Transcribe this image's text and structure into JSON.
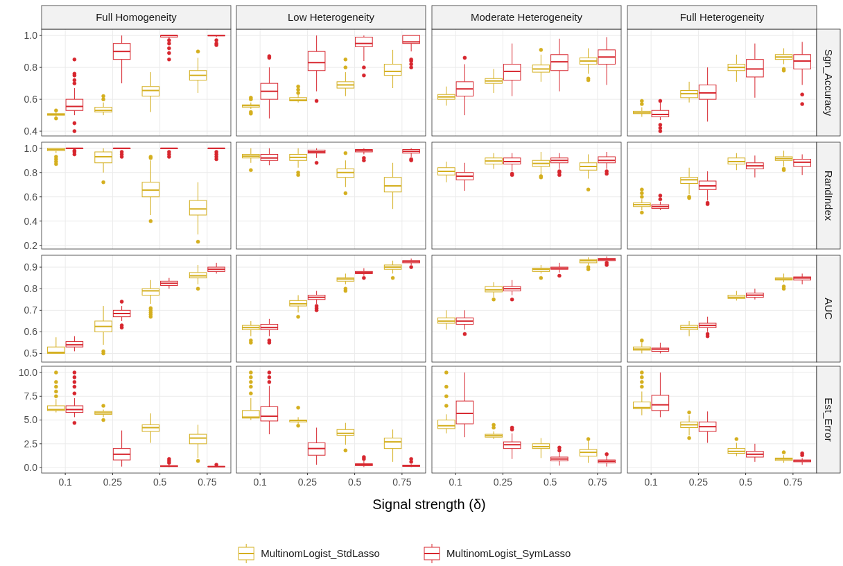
{
  "chart_data": [
    {
      "type": "box",
      "title": "Full Homogeneity",
      "categories": [
        "0.1",
        "0.25",
        "0.5",
        "0.75"
      ],
      "ylim": [
        0.37,
        1.04
      ],
      "yticks": [
        0.4,
        0.6,
        0.8,
        {
          "value": 1,
          "label": "1.0"
        }
      ],
      "grid": true,
      "tick_labels": "y",
      "legend": "bottom",
      "series": [
        {
          "name": "MultinomLogist_StdLasso",
          "color": "#d4af1f",
          "boxes": [
            {
              "low": 0.49,
              "q1": 0.5,
              "median": 0.505,
              "q3": 0.51,
              "high": 0.52,
              "outliers": [
                0.48,
                0.53
              ]
            },
            {
              "low": 0.5,
              "q1": 0.52,
              "median": 0.53,
              "q3": 0.55,
              "high": 0.58,
              "outliers": [
                0.6,
                0.62
              ]
            },
            {
              "low": 0.52,
              "q1": 0.62,
              "median": 0.655,
              "q3": 0.68,
              "high": 0.77
            },
            {
              "low": 0.64,
              "q1": 0.72,
              "median": 0.75,
              "q3": 0.78,
              "high": 0.86,
              "outliers": [
                0.9
              ]
            }
          ]
        },
        {
          "name": "MultinomLogist_SymLasso",
          "color": "#d7262e",
          "boxes": [
            {
              "low": 0.5,
              "q1": 0.53,
              "median": 0.555,
              "q3": 0.6,
              "high": 0.67,
              "outliers": [
                0.4,
                0.45,
                0.7,
                0.72,
                0.75,
                0.76,
                0.85
              ]
            },
            {
              "low": 0.7,
              "q1": 0.85,
              "median": 0.9,
              "q3": 0.95,
              "high": 1
            },
            {
              "low": 0.98,
              "q1": 0.99,
              "median": 1,
              "q3": 1,
              "high": 1,
              "outliers": [
                0.85,
                0.89,
                0.92,
                0.95,
                0.97
              ]
            },
            {
              "low": 0.99,
              "q1": 1,
              "median": 1,
              "q3": 1,
              "high": 1,
              "outliers": [
                0.94,
                0.95,
                0.97
              ]
            }
          ]
        }
      ]
    },
    {
      "type": "box",
      "title": "Low Heterogeneity",
      "categories": [
        "0.1",
        "0.25",
        "0.5",
        "0.75"
      ],
      "ylim": [
        0.37,
        1.04
      ],
      "yticks": [
        0.4,
        0.6,
        0.8,
        1
      ],
      "grid": true,
      "tick_labels": false,
      "series": [
        {
          "color": "#d4af1f",
          "boxes": [
            {
              "low": 0.54,
              "q1": 0.55,
              "median": 0.56,
              "q3": 0.565,
              "high": 0.58,
              "outliers": [
                0.51,
                0.52,
                0.6,
                0.61
              ]
            },
            {
              "low": 0.58,
              "q1": 0.59,
              "median": 0.595,
              "q3": 0.61,
              "high": 0.63,
              "outliers": [
                0.64,
                0.66,
                0.68
              ]
            },
            {
              "low": 0.62,
              "q1": 0.67,
              "median": 0.69,
              "q3": 0.71,
              "high": 0.77,
              "outliers": [
                0.8,
                0.85
              ]
            },
            {
              "low": 0.67,
              "q1": 0.75,
              "median": 0.775,
              "q3": 0.82,
              "high": 0.91
            }
          ]
        },
        {
          "color": "#d7262e",
          "boxes": [
            {
              "low": 0.48,
              "q1": 0.6,
              "median": 0.65,
              "q3": 0.7,
              "high": 0.8,
              "outliers": [
                0.86,
                0.87
              ]
            },
            {
              "low": 0.65,
              "q1": 0.78,
              "median": 0.83,
              "q3": 0.9,
              "high": 1,
              "outliers": [
                0.59
              ]
            },
            {
              "low": 0.84,
              "q1": 0.93,
              "median": 0.95,
              "q3": 0.99,
              "high": 1,
              "outliers": [
                0.75,
                0.8
              ]
            },
            {
              "low": 0.9,
              "q1": 0.95,
              "median": 0.96,
              "q3": 1,
              "high": 1,
              "outliers": [
                0.8,
                0.82,
                0.84,
                0.85
              ]
            }
          ]
        }
      ]
    },
    {
      "type": "box",
      "title": "Moderate Heterogeneity",
      "categories": [
        "0.1",
        "0.25",
        "0.5",
        "0.75"
      ],
      "ylim": [
        0.37,
        1.04
      ],
      "yticks": [
        0.4,
        0.6,
        0.8,
        1
      ],
      "grid": true,
      "tick_labels": false,
      "series": [
        {
          "color": "#d4af1f",
          "boxes": [
            {
              "low": 0.56,
              "q1": 0.6,
              "median": 0.615,
              "q3": 0.63,
              "high": 0.68
            },
            {
              "low": 0.64,
              "q1": 0.7,
              "median": 0.715,
              "q3": 0.73,
              "high": 0.79
            },
            {
              "low": 0.71,
              "q1": 0.77,
              "median": 0.79,
              "q3": 0.815,
              "high": 0.88,
              "outliers": [
                0.91
              ]
            },
            {
              "low": 0.76,
              "q1": 0.82,
              "median": 0.84,
              "q3": 0.86,
              "high": 0.92,
              "outliers": [
                0.72,
                0.73
              ]
            }
          ]
        },
        {
          "color": "#d7262e",
          "boxes": [
            {
              "low": 0.5,
              "q1": 0.62,
              "median": 0.665,
              "q3": 0.71,
              "high": 0.82,
              "outliers": [
                0.86
              ]
            },
            {
              "low": 0.62,
              "q1": 0.72,
              "median": 0.775,
              "q3": 0.82,
              "high": 0.95
            },
            {
              "low": 0.65,
              "q1": 0.78,
              "median": 0.835,
              "q3": 0.88,
              "high": 0.98
            },
            {
              "low": 0.69,
              "q1": 0.82,
              "median": 0.865,
              "q3": 0.91,
              "high": 0.99
            }
          ]
        }
      ]
    },
    {
      "type": "box",
      "title": "Full Heterogeneity",
      "ylabel": "Sgn_Accuracy",
      "categories": [
        "0.1",
        "0.25",
        "0.5",
        "0.75"
      ],
      "ylim": [
        0.37,
        1.04
      ],
      "yticks": [
        0.4,
        0.6,
        0.8,
        1
      ],
      "grid": true,
      "tick_labels": false,
      "series": [
        {
          "color": "#d4af1f",
          "boxes": [
            {
              "low": 0.49,
              "q1": 0.51,
              "median": 0.515,
              "q3": 0.525,
              "high": 0.55,
              "outliers": [
                0.57,
                0.59
              ]
            },
            {
              "low": 0.58,
              "q1": 0.61,
              "median": 0.635,
              "q3": 0.655,
              "high": 0.71
            },
            {
              "low": 0.71,
              "q1": 0.78,
              "median": 0.8,
              "q3": 0.82,
              "high": 0.88
            },
            {
              "low": 0.82,
              "q1": 0.85,
              "median": 0.865,
              "q3": 0.88,
              "high": 0.92,
              "outliers": [
                0.78,
                0.79
              ]
            }
          ]
        },
        {
          "color": "#d7262e",
          "boxes": [
            {
              "low": 0.47,
              "q1": 0.49,
              "median": 0.505,
              "q3": 0.53,
              "high": 0.58,
              "outliers": [
                0.4,
                0.42,
                0.44,
                0.59
              ]
            },
            {
              "low": 0.46,
              "q1": 0.6,
              "median": 0.64,
              "q3": 0.69,
              "high": 0.8
            },
            {
              "low": 0.61,
              "q1": 0.74,
              "median": 0.79,
              "q3": 0.85,
              "high": 0.95
            },
            {
              "low": 0.69,
              "q1": 0.79,
              "median": 0.84,
              "q3": 0.88,
              "high": 0.96,
              "outliers": [
                0.57,
                0.63
              ]
            }
          ]
        }
      ]
    },
    {
      "type": "box",
      "categories": [
        "0.1",
        "0.25",
        "0.5",
        "0.75"
      ],
      "ylim": [
        0.17,
        1.05
      ],
      "yticks": [
        0.2,
        0.4,
        0.6,
        0.8,
        {
          "value": 1,
          "label": "1.0"
        }
      ],
      "grid": true,
      "tick_labels": "y",
      "series": [
        {
          "color": "#d4af1f",
          "boxes": [
            {
              "low": 0.96,
              "q1": 0.98,
              "median": 0.99,
              "q3": 1,
              "high": 1,
              "outliers": [
                0.87,
                0.89,
                0.91,
                0.93
              ]
            },
            {
              "low": 0.8,
              "q1": 0.88,
              "median": 0.93,
              "q3": 0.97,
              "high": 1,
              "outliers": [
                0.72
              ]
            },
            {
              "low": 0.45,
              "q1": 0.6,
              "median": 0.655,
              "q3": 0.72,
              "high": 0.9,
              "outliers": [
                0.4,
                0.92,
                0.93
              ]
            },
            {
              "low": 0.29,
              "q1": 0.45,
              "median": 0.5,
              "q3": 0.57,
              "high": 0.72,
              "outliers": [
                0.23
              ]
            }
          ]
        },
        {
          "color": "#d7262e",
          "boxes": [
            {
              "low": 1,
              "q1": 1,
              "median": 1,
              "q3": 1,
              "high": 1,
              "outliers": [
                0.95,
                0.97,
                0.98
              ]
            },
            {
              "low": 1,
              "q1": 1,
              "median": 1,
              "q3": 1,
              "high": 1,
              "outliers": [
                0.93,
                0.95,
                0.97
              ]
            },
            {
              "low": 1,
              "q1": 1,
              "median": 1,
              "q3": 1,
              "high": 1,
              "outliers": [
                0.93,
                0.95,
                0.97
              ]
            },
            {
              "low": 1,
              "q1": 1,
              "median": 1,
              "q3": 1,
              "high": 1,
              "outliers": [
                0.91,
                0.93,
                0.95,
                0.97
              ]
            }
          ]
        }
      ]
    },
    {
      "type": "box",
      "categories": [
        "0.1",
        "0.25",
        "0.5",
        "0.75"
      ],
      "ylim": [
        0.17,
        1.05
      ],
      "yticks": [
        0.2,
        0.4,
        0.6,
        0.8,
        1
      ],
      "grid": true,
      "tick_labels": false,
      "series": [
        {
          "color": "#d4af1f",
          "boxes": [
            {
              "low": 0.88,
              "q1": 0.92,
              "median": 0.935,
              "q3": 0.95,
              "high": 1,
              "outliers": [
                0.82
              ]
            },
            {
              "low": 0.84,
              "q1": 0.9,
              "median": 0.925,
              "q3": 0.95,
              "high": 1,
              "outliers": [
                0.78,
                0.8
              ]
            },
            {
              "low": 0.68,
              "q1": 0.76,
              "median": 0.8,
              "q3": 0.83,
              "high": 0.9,
              "outliers": [
                0.63,
                0.96
              ]
            },
            {
              "low": 0.5,
              "q1": 0.64,
              "median": 0.69,
              "q3": 0.76,
              "high": 0.88
            }
          ]
        },
        {
          "color": "#d7262e",
          "boxes": [
            {
              "low": 0.86,
              "q1": 0.9,
              "median": 0.92,
              "q3": 0.95,
              "high": 1
            },
            {
              "low": 0.92,
              "q1": 0.96,
              "median": 0.97,
              "q3": 0.985,
              "high": 1,
              "outliers": [
                0.88
              ]
            },
            {
              "low": 0.95,
              "q1": 0.97,
              "median": 0.98,
              "q3": 0.99,
              "high": 1,
              "outliers": [
                0.9,
                0.92
              ]
            },
            {
              "low": 0.93,
              "q1": 0.96,
              "median": 0.975,
              "q3": 0.99,
              "high": 1,
              "outliers": [
                0.9,
                0.91
              ]
            }
          ]
        }
      ]
    },
    {
      "type": "box",
      "categories": [
        "0.1",
        "0.25",
        "0.5",
        "0.75"
      ],
      "ylim": [
        0.17,
        1.05
      ],
      "yticks": [
        0.2,
        0.4,
        0.6,
        0.8,
        1
      ],
      "grid": true,
      "tick_labels": false,
      "series": [
        {
          "color": "#d4af1f",
          "boxes": [
            {
              "low": 0.72,
              "q1": 0.78,
              "median": 0.81,
              "q3": 0.84,
              "high": 0.89
            },
            {
              "low": 0.83,
              "q1": 0.87,
              "median": 0.895,
              "q3": 0.92,
              "high": 0.96
            },
            {
              "low": 0.78,
              "q1": 0.85,
              "median": 0.875,
              "q3": 0.9,
              "high": 0.97,
              "outliers": [
                0.76,
                0.77
              ]
            },
            {
              "low": 0.75,
              "q1": 0.82,
              "median": 0.85,
              "q3": 0.88,
              "high": 0.95,
              "outliers": [
                0.66
              ]
            }
          ]
        },
        {
          "color": "#d7262e",
          "boxes": [
            {
              "low": 0.65,
              "q1": 0.74,
              "median": 0.77,
              "q3": 0.8,
              "high": 0.88
            },
            {
              "low": 0.81,
              "q1": 0.87,
              "median": 0.89,
              "q3": 0.92,
              "high": 0.96,
              "outliers": [
                0.78,
                0.79
              ]
            },
            {
              "low": 0.83,
              "q1": 0.88,
              "median": 0.9,
              "q3": 0.92,
              "high": 0.96,
              "outliers": [
                0.78,
                0.8,
                0.81
              ]
            },
            {
              "low": 0.83,
              "q1": 0.88,
              "median": 0.9,
              "q3": 0.93,
              "high": 0.97,
              "outliers": [
                0.79,
                0.81
              ]
            }
          ]
        }
      ]
    },
    {
      "type": "box",
      "ylabel": "RandIndex",
      "categories": [
        "0.1",
        "0.25",
        "0.5",
        "0.75"
      ],
      "ylim": [
        0.17,
        1.05
      ],
      "yticks": [
        0.2,
        0.4,
        0.6,
        0.8,
        1
      ],
      "grid": true,
      "tick_labels": false,
      "series": [
        {
          "color": "#d4af1f",
          "boxes": [
            {
              "low": 0.49,
              "q1": 0.52,
              "median": 0.535,
              "q3": 0.55,
              "high": 0.58,
              "outliers": [
                0.47,
                0.6,
                0.63,
                0.66
              ]
            },
            {
              "low": 0.62,
              "q1": 0.71,
              "median": 0.74,
              "q3": 0.76,
              "high": 0.84,
              "outliers": [
                0.59,
                0.6
              ]
            },
            {
              "low": 0.82,
              "q1": 0.87,
              "median": 0.89,
              "q3": 0.92,
              "high": 0.96
            },
            {
              "low": 0.85,
              "q1": 0.9,
              "median": 0.915,
              "q3": 0.93,
              "high": 0.98,
              "outliers": [
                0.82,
                0.83
              ]
            }
          ]
        },
        {
          "color": "#d7262e",
          "boxes": [
            {
              "low": 0.49,
              "q1": 0.505,
              "median": 0.52,
              "q3": 0.535,
              "high": 0.56,
              "outliers": [
                0.58,
                0.61
              ]
            },
            {
              "low": 0.57,
              "q1": 0.66,
              "median": 0.69,
              "q3": 0.73,
              "high": 0.81,
              "outliers": [
                0.54,
                0.55
              ]
            },
            {
              "low": 0.76,
              "q1": 0.83,
              "median": 0.855,
              "q3": 0.88,
              "high": 0.94
            },
            {
              "low": 0.78,
              "q1": 0.85,
              "median": 0.885,
              "q3": 0.91,
              "high": 0.95
            }
          ]
        }
      ]
    },
    {
      "type": "box",
      "categories": [
        "0.1",
        "0.25",
        "0.5",
        "0.75"
      ],
      "ylim": [
        0.46,
        0.955
      ],
      "yticks": [
        0.5,
        0.6,
        0.7,
        0.8,
        0.9
      ],
      "grid": true,
      "tick_labels": "y",
      "series": [
        {
          "color": "#d4af1f",
          "boxes": [
            {
              "low": 0.5,
              "q1": 0.5,
              "median": 0.505,
              "q3": 0.53,
              "high": 0.575
            },
            {
              "low": 0.54,
              "q1": 0.6,
              "median": 0.625,
              "q3": 0.65,
              "high": 0.72,
              "outliers": [
                0.5,
                0.51
              ]
            },
            {
              "low": 0.73,
              "q1": 0.77,
              "median": 0.79,
              "q3": 0.8,
              "high": 0.84,
              "outliers": [
                0.67,
                0.68,
                0.69,
                0.7,
                0.71
              ]
            },
            {
              "low": 0.82,
              "q1": 0.85,
              "median": 0.86,
              "q3": 0.875,
              "high": 0.91,
              "outliers": [
                0.8
              ]
            }
          ]
        },
        {
          "color": "#d7262e",
          "boxes": [
            {
              "low": 0.51,
              "q1": 0.53,
              "median": 0.54,
              "q3": 0.555,
              "high": 0.58
            },
            {
              "low": 0.65,
              "q1": 0.67,
              "median": 0.685,
              "q3": 0.7,
              "high": 0.72,
              "outliers": [
                0.62,
                0.63,
                0.74
              ]
            },
            {
              "low": 0.8,
              "q1": 0.815,
              "median": 0.825,
              "q3": 0.835,
              "high": 0.85
            },
            {
              "low": 0.87,
              "q1": 0.88,
              "median": 0.89,
              "q3": 0.9,
              "high": 0.92
            }
          ]
        }
      ]
    },
    {
      "type": "box",
      "categories": [
        "0.1",
        "0.25",
        "0.5",
        "0.75"
      ],
      "ylim": [
        0.46,
        0.955
      ],
      "yticks": [
        0.5,
        0.6,
        0.7,
        0.8,
        0.9
      ],
      "grid": true,
      "tick_labels": false,
      "series": [
        {
          "color": "#d4af1f",
          "boxes": [
            {
              "low": 0.58,
              "q1": 0.61,
              "median": 0.62,
              "q3": 0.63,
              "high": 0.65,
              "outliers": [
                0.55,
                0.56
              ]
            },
            {
              "low": 0.69,
              "q1": 0.72,
              "median": 0.73,
              "q3": 0.745,
              "high": 0.77,
              "outliers": [
                0.67
              ]
            },
            {
              "low": 0.82,
              "q1": 0.835,
              "median": 0.845,
              "q3": 0.85,
              "high": 0.87,
              "outliers": [
                0.79,
                0.8
              ]
            },
            {
              "low": 0.87,
              "q1": 0.89,
              "median": 0.9,
              "q3": 0.91,
              "high": 0.93,
              "outliers": [
                0.85
              ]
            }
          ]
        },
        {
          "color": "#d7262e",
          "boxes": [
            {
              "low": 0.58,
              "q1": 0.61,
              "median": 0.62,
              "q3": 0.635,
              "high": 0.66,
              "outliers": [
                0.55,
                0.56
              ]
            },
            {
              "low": 0.73,
              "q1": 0.75,
              "median": 0.76,
              "q3": 0.77,
              "high": 0.79,
              "outliers": [
                0.7,
                0.71,
                0.72
              ]
            },
            {
              "low": 0.86,
              "q1": 0.87,
              "median": 0.875,
              "q3": 0.88,
              "high": 0.895,
              "outliers": [
                0.85
              ]
            },
            {
              "low": 0.91,
              "q1": 0.92,
              "median": 0.925,
              "q3": 0.93,
              "high": 0.94,
              "outliers": [
                0.9
              ]
            }
          ]
        }
      ]
    },
    {
      "type": "box",
      "categories": [
        "0.1",
        "0.25",
        "0.5",
        "0.75"
      ],
      "ylim": [
        0.46,
        0.955
      ],
      "yticks": [
        0.5,
        0.6,
        0.7,
        0.8,
        0.9
      ],
      "grid": true,
      "tick_labels": false,
      "series": [
        {
          "color": "#d4af1f",
          "boxes": [
            {
              "low": 0.61,
              "q1": 0.64,
              "median": 0.65,
              "q3": 0.665,
              "high": 0.7
            },
            {
              "low": 0.76,
              "q1": 0.785,
              "median": 0.795,
              "q3": 0.81,
              "high": 0.83,
              "outliers": [
                0.75
              ]
            },
            {
              "low": 0.87,
              "q1": 0.88,
              "median": 0.89,
              "q3": 0.895,
              "high": 0.91,
              "outliers": [
                0.85
              ]
            },
            {
              "low": 0.91,
              "q1": 0.92,
              "median": 0.93,
              "q3": 0.935,
              "high": 0.945,
              "outliers": [
                0.89,
                0.9
              ]
            }
          ]
        },
        {
          "color": "#d7262e",
          "boxes": [
            {
              "low": 0.61,
              "q1": 0.635,
              "median": 0.65,
              "q3": 0.665,
              "high": 0.7,
              "outliers": [
                0.59
              ]
            },
            {
              "low": 0.77,
              "q1": 0.79,
              "median": 0.8,
              "q3": 0.81,
              "high": 0.84,
              "outliers": [
                0.75
              ]
            },
            {
              "low": 0.875,
              "q1": 0.89,
              "median": 0.895,
              "q3": 0.9,
              "high": 0.92,
              "outliers": [
                0.86
              ]
            },
            {
              "low": 0.92,
              "q1": 0.93,
              "median": 0.935,
              "q3": 0.94,
              "high": 0.95,
              "outliers": [
                0.91,
                0.92
              ]
            }
          ]
        }
      ]
    },
    {
      "type": "box",
      "ylabel": "AUC",
      "categories": [
        "0.1",
        "0.25",
        "0.5",
        "0.75"
      ],
      "ylim": [
        0.46,
        0.955
      ],
      "yticks": [
        0.5,
        0.6,
        0.7,
        0.8,
        0.9
      ],
      "grid": true,
      "tick_labels": false,
      "series": [
        {
          "color": "#d4af1f",
          "boxes": [
            {
              "low": 0.5,
              "q1": 0.515,
              "median": 0.52,
              "q3": 0.53,
              "high": 0.55,
              "outliers": [
                0.56
              ]
            },
            {
              "low": 0.58,
              "q1": 0.61,
              "median": 0.62,
              "q3": 0.63,
              "high": 0.65
            },
            {
              "low": 0.745,
              "q1": 0.755,
              "median": 0.76,
              "q3": 0.77,
              "high": 0.79
            },
            {
              "low": 0.83,
              "q1": 0.84,
              "median": 0.845,
              "q3": 0.85,
              "high": 0.87,
              "outliers": [
                0.8,
                0.81
              ]
            }
          ]
        },
        {
          "color": "#d7262e",
          "boxes": [
            {
              "low": 0.5,
              "q1": 0.51,
              "median": 0.52,
              "q3": 0.525,
              "high": 0.55
            },
            {
              "low": 0.6,
              "q1": 0.62,
              "median": 0.63,
              "q3": 0.64,
              "high": 0.67,
              "outliers": [
                0.58,
                0.59
              ]
            },
            {
              "low": 0.75,
              "q1": 0.76,
              "median": 0.77,
              "q3": 0.78,
              "high": 0.8
            },
            {
              "low": 0.82,
              "q1": 0.84,
              "median": 0.85,
              "q3": 0.855,
              "high": 0.87
            }
          ]
        }
      ]
    },
    {
      "type": "box",
      "categories": [
        "0.1",
        "0.25",
        "0.5",
        "0.75"
      ],
      "ylim": [
        -0.58,
        10.66
      ],
      "yticks": [
        {
          "value": 0,
          "label": "0.0"
        },
        2.5,
        {
          "value": 5,
          "label": "5.0"
        },
        7.5,
        {
          "value": 10,
          "label": "10.0"
        }
      ],
      "grid": true,
      "series": [
        {
          "color": "#d4af1f",
          "boxes": [
            {
              "low": 5.8,
              "q1": 6,
              "median": 6.1,
              "q3": 6.5,
              "high": 7.2,
              "outliers": [
                7.5,
                8,
                8.5,
                9,
                10
              ]
            },
            {
              "low": 5.3,
              "q1": 5.6,
              "median": 5.75,
              "q3": 5.9,
              "high": 6.1,
              "outliers": [
                5,
                6.5
              ]
            },
            {
              "low": 2.6,
              "q1": 3.8,
              "median": 4.2,
              "q3": 4.5,
              "high": 5.7
            },
            {
              "low": 1,
              "q1": 2.5,
              "median": 3.1,
              "q3": 3.5,
              "high": 4.5,
              "outliers": [
                0.7
              ]
            }
          ]
        },
        {
          "color": "#d7262e",
          "boxes": [
            {
              "low": 5.3,
              "q1": 5.8,
              "median": 6.1,
              "q3": 6.5,
              "high": 7.3,
              "outliers": [
                4.7,
                7.8,
                8.5,
                9,
                9.5,
                10
              ]
            },
            {
              "low": 0.1,
              "q1": 0.8,
              "median": 1.4,
              "q3": 2,
              "high": 3.9
            },
            {
              "low": 0.05,
              "q1": 0.1,
              "median": 0.15,
              "q3": 0.2,
              "high": 0.3,
              "outliers": [
                0.5,
                0.7,
                0.9
              ]
            },
            {
              "low": 0.05,
              "q1": 0.08,
              "median": 0.1,
              "q3": 0.12,
              "high": 0.15,
              "outliers": [
                0.3
              ]
            }
          ]
        }
      ]
    },
    {
      "type": "box",
      "categories": [
        "0.1",
        "0.25",
        "0.5",
        "0.75"
      ],
      "ylim": [
        -0.58,
        10.66
      ],
      "yticks": [
        0,
        2.5,
        5,
        7.5,
        10
      ],
      "grid": true,
      "tick_labels": "x",
      "xlabel": "Signal strength (δ)",
      "series": [
        {
          "color": "#d4af1f",
          "boxes": [
            {
              "low": 5,
              "q1": 5.2,
              "median": 5.3,
              "q3": 6,
              "high": 7.3,
              "outliers": [
                7.8,
                8.5,
                9,
                9.5,
                10
              ]
            },
            {
              "low": 4.6,
              "q1": 4.8,
              "median": 4.95,
              "q3": 5,
              "high": 5.3,
              "outliers": [
                4.4,
                6.3
              ]
            },
            {
              "low": 2.4,
              "q1": 3.4,
              "median": 3.6,
              "q3": 4,
              "high": 4.7,
              "outliers": [
                1.8
              ]
            },
            {
              "low": 0.6,
              "q1": 2,
              "median": 2.7,
              "q3": 3.1,
              "high": 4
            }
          ]
        },
        {
          "color": "#d7262e",
          "boxes": [
            {
              "low": 3.5,
              "q1": 4.9,
              "median": 5.4,
              "q3": 6.4,
              "high": 8.6,
              "outliers": [
                9,
                9.5,
                10
              ]
            },
            {
              "low": 0.3,
              "q1": 1.3,
              "median": 2,
              "q3": 2.6,
              "high": 4.2
            },
            {
              "low": 0.05,
              "q1": 0.2,
              "median": 0.3,
              "q3": 0.4,
              "high": 0.7,
              "outliers": [
                0.9,
                1.1
              ]
            },
            {
              "low": 0.05,
              "q1": 0.12,
              "median": 0.2,
              "q3": 0.25,
              "high": 0.35,
              "outliers": [
                0.6,
                0.9
              ]
            }
          ]
        }
      ]
    },
    {
      "type": "box",
      "categories": [
        "0.1",
        "0.25",
        "0.5",
        "0.75"
      ],
      "ylim": [
        -0.58,
        10.66
      ],
      "yticks": [
        0,
        2.5,
        5,
        7.5,
        10
      ],
      "grid": true,
      "tick_labels": "x",
      "series": [
        {
          "color": "#d4af1f",
          "boxes": [
            {
              "low": 3.6,
              "q1": 4.1,
              "median": 4.4,
              "q3": 5,
              "high": 5.6,
              "outliers": [
                6.5,
                7.5,
                8.5,
                10
              ]
            },
            {
              "low": 3,
              "q1": 3.2,
              "median": 3.35,
              "q3": 3.5,
              "high": 3.8,
              "outliers": [
                4.2,
                4.5
              ]
            },
            {
              "low": 1,
              "q1": 2,
              "median": 2.2,
              "q3": 2.5,
              "high": 3.1
            },
            {
              "low": 0.5,
              "q1": 1.2,
              "median": 1.6,
              "q3": 1.9,
              "high": 2.9,
              "outliers": [
                3
              ]
            }
          ]
        },
        {
          "color": "#d7262e",
          "boxes": [
            {
              "low": 3.2,
              "q1": 4.6,
              "median": 5.7,
              "q3": 7,
              "high": 10
            },
            {
              "low": 0.9,
              "q1": 2,
              "median": 2.4,
              "q3": 2.7,
              "high": 3.6,
              "outliers": [
                4,
                4.2
              ]
            },
            {
              "low": 0.2,
              "q1": 0.7,
              "median": 0.9,
              "q3": 1.1,
              "high": 1.6,
              "outliers": [
                1.8,
                2.1
              ]
            },
            {
              "low": 0.1,
              "q1": 0.5,
              "median": 0.65,
              "q3": 0.8,
              "high": 1.3,
              "outliers": [
                1.4
              ]
            }
          ]
        }
      ]
    },
    {
      "type": "box",
      "ylabel": "Est_Error",
      "categories": [
        "0.1",
        "0.25",
        "0.5",
        "0.75"
      ],
      "ylim": [
        -0.58,
        10.66
      ],
      "yticks": [
        0,
        2.5,
        5,
        7.5,
        10
      ],
      "grid": true,
      "tick_labels": "x",
      "series": [
        {
          "color": "#d4af1f",
          "boxes": [
            {
              "low": 5.5,
              "q1": 6.2,
              "median": 6.3,
              "q3": 6.9,
              "high": 8,
              "outliers": [
                8.5,
                9,
                9.5,
                10
              ]
            },
            {
              "low": 3.4,
              "q1": 4.2,
              "median": 4.5,
              "q3": 4.8,
              "high": 5.5,
              "outliers": [
                3.1,
                5.8
              ]
            },
            {
              "low": 1.2,
              "q1": 1.5,
              "median": 1.7,
              "q3": 2,
              "high": 2.6,
              "outliers": [
                3
              ]
            },
            {
              "low": 0.5,
              "q1": 0.75,
              "median": 0.9,
              "q3": 1,
              "high": 1.3,
              "outliers": [
                1.6
              ]
            }
          ]
        },
        {
          "color": "#d7262e",
          "boxes": [
            {
              "low": 5.3,
              "q1": 6,
              "median": 6.6,
              "q3": 7.6,
              "high": 10
            },
            {
              "low": 2.6,
              "q1": 3.8,
              "median": 4.3,
              "q3": 4.8,
              "high": 5.9
            },
            {
              "low": 0.6,
              "q1": 1.1,
              "median": 1.4,
              "q3": 1.7,
              "high": 2.5
            },
            {
              "low": 0.3,
              "q1": 0.6,
              "median": 0.7,
              "q3": 0.8,
              "high": 1,
              "outliers": [
                1.3,
                1.5
              ]
            }
          ]
        }
      ]
    }
  ]
}
